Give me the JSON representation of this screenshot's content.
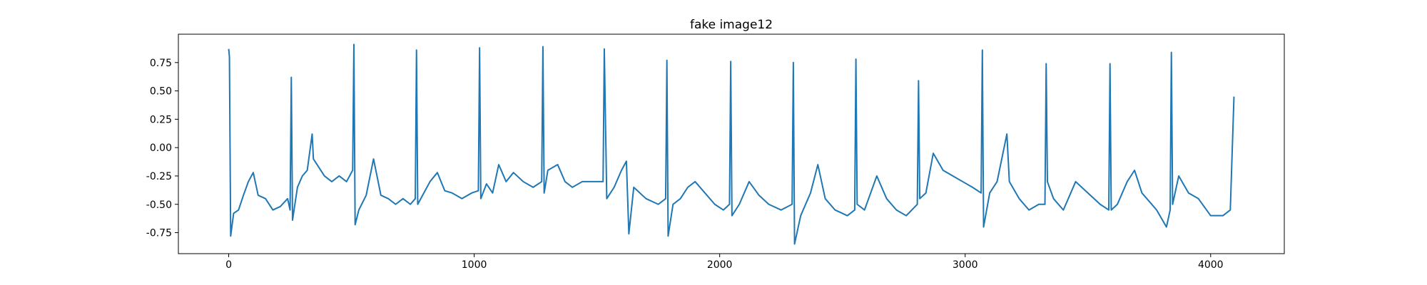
{
  "chart_data": {
    "type": "line",
    "title": "fake image12",
    "color": "#1f77b4",
    "x": [
      0,
      3,
      8,
      20,
      40,
      60,
      80,
      100,
      120,
      150,
      180,
      210,
      240,
      250,
      255,
      260,
      280,
      300,
      320,
      340,
      345,
      360,
      390,
      420,
      450,
      480,
      505,
      510,
      515,
      530,
      560,
      590,
      620,
      650,
      680,
      710,
      740,
      760,
      765,
      770,
      790,
      820,
      850,
      880,
      910,
      950,
      990,
      1017,
      1022,
      1027,
      1050,
      1075,
      1100,
      1130,
      1160,
      1200,
      1240,
      1275,
      1280,
      1285,
      1300,
      1340,
      1370,
      1400,
      1440,
      1480,
      1525,
      1530,
      1540,
      1570,
      1600,
      1620,
      1630,
      1650,
      1700,
      1750,
      1780,
      1785,
      1790,
      1810,
      1840,
      1870,
      1900,
      1940,
      1980,
      2015,
      2040,
      2045,
      2050,
      2080,
      2120,
      2160,
      2200,
      2250,
      2295,
      2300,
      2305,
      2330,
      2370,
      2400,
      2430,
      2470,
      2520,
      2550,
      2555,
      2560,
      2590,
      2640,
      2680,
      2720,
      2760,
      2805,
      2810,
      2815,
      2840,
      2870,
      2910,
      2950,
      2990,
      3030,
      3065,
      3070,
      3075,
      3100,
      3130,
      3170,
      3180,
      3220,
      3260,
      3300,
      3325,
      3330,
      3335,
      3360,
      3400,
      3450,
      3500,
      3550,
      3585,
      3590,
      3595,
      3620,
      3660,
      3690,
      3720,
      3780,
      3820,
      3835,
      3840,
      3845,
      3870,
      3910,
      3950,
      4000,
      4050,
      4080,
      4095
    ],
    "values": [
      0.87,
      0.8,
      -0.78,
      -0.58,
      -0.55,
      -0.42,
      -0.3,
      -0.22,
      -0.42,
      -0.45,
      -0.55,
      -0.52,
      -0.45,
      -0.55,
      0.62,
      -0.64,
      -0.35,
      -0.25,
      -0.2,
      0.12,
      -0.1,
      -0.15,
      -0.25,
      -0.3,
      -0.25,
      -0.3,
      -0.2,
      0.91,
      -0.68,
      -0.55,
      -0.42,
      -0.1,
      -0.42,
      -0.45,
      -0.5,
      -0.45,
      -0.5,
      -0.45,
      0.86,
      -0.5,
      -0.42,
      -0.3,
      -0.22,
      -0.38,
      -0.4,
      -0.45,
      -0.4,
      -0.38,
      0.88,
      -0.45,
      -0.32,
      -0.4,
      -0.15,
      -0.3,
      -0.22,
      -0.3,
      -0.35,
      -0.3,
      0.89,
      -0.4,
      -0.2,
      -0.15,
      -0.3,
      -0.35,
      -0.3,
      -0.3,
      -0.3,
      0.87,
      -0.45,
      -0.35,
      -0.2,
      -0.12,
      -0.76,
      -0.35,
      -0.45,
      -0.5,
      -0.45,
      0.77,
      -0.78,
      -0.5,
      -0.45,
      -0.35,
      -0.3,
      -0.4,
      -0.5,
      -0.55,
      -0.5,
      0.76,
      -0.6,
      -0.5,
      -0.3,
      -0.42,
      -0.5,
      -0.55,
      -0.5,
      0.75,
      -0.85,
      -0.6,
      -0.4,
      -0.15,
      -0.45,
      -0.55,
      -0.6,
      -0.55,
      0.78,
      -0.5,
      -0.55,
      -0.25,
      -0.45,
      -0.55,
      -0.6,
      -0.5,
      0.59,
      -0.45,
      -0.4,
      -0.05,
      -0.2,
      -0.25,
      -0.3,
      -0.35,
      -0.4,
      0.86,
      -0.7,
      -0.4,
      -0.3,
      0.12,
      -0.3,
      -0.45,
      -0.55,
      -0.5,
      -0.5,
      0.74,
      -0.3,
      -0.45,
      -0.55,
      -0.3,
      -0.4,
      -0.5,
      -0.55,
      0.74,
      -0.55,
      -0.5,
      -0.3,
      -0.2,
      -0.4,
      -0.55,
      -0.7,
      -0.55,
      0.84,
      -0.5,
      -0.25,
      -0.4,
      -0.45,
      -0.6,
      -0.6,
      -0.55,
      0.45
    ],
    "xlim": [
      -205,
      4300
    ],
    "xticks": [
      0,
      1000,
      2000,
      3000,
      4000
    ],
    "ylim": [
      -0.935,
      1.0
    ],
    "yticks": [
      -0.75,
      {
        "value": -0.5,
        "label": "-0.50"
      },
      -0.25,
      {
        "value": 0,
        "label": "0.00"
      },
      0.25,
      {
        "value": 0.5,
        "label": "0.50"
      },
      0.75
    ]
  }
}
